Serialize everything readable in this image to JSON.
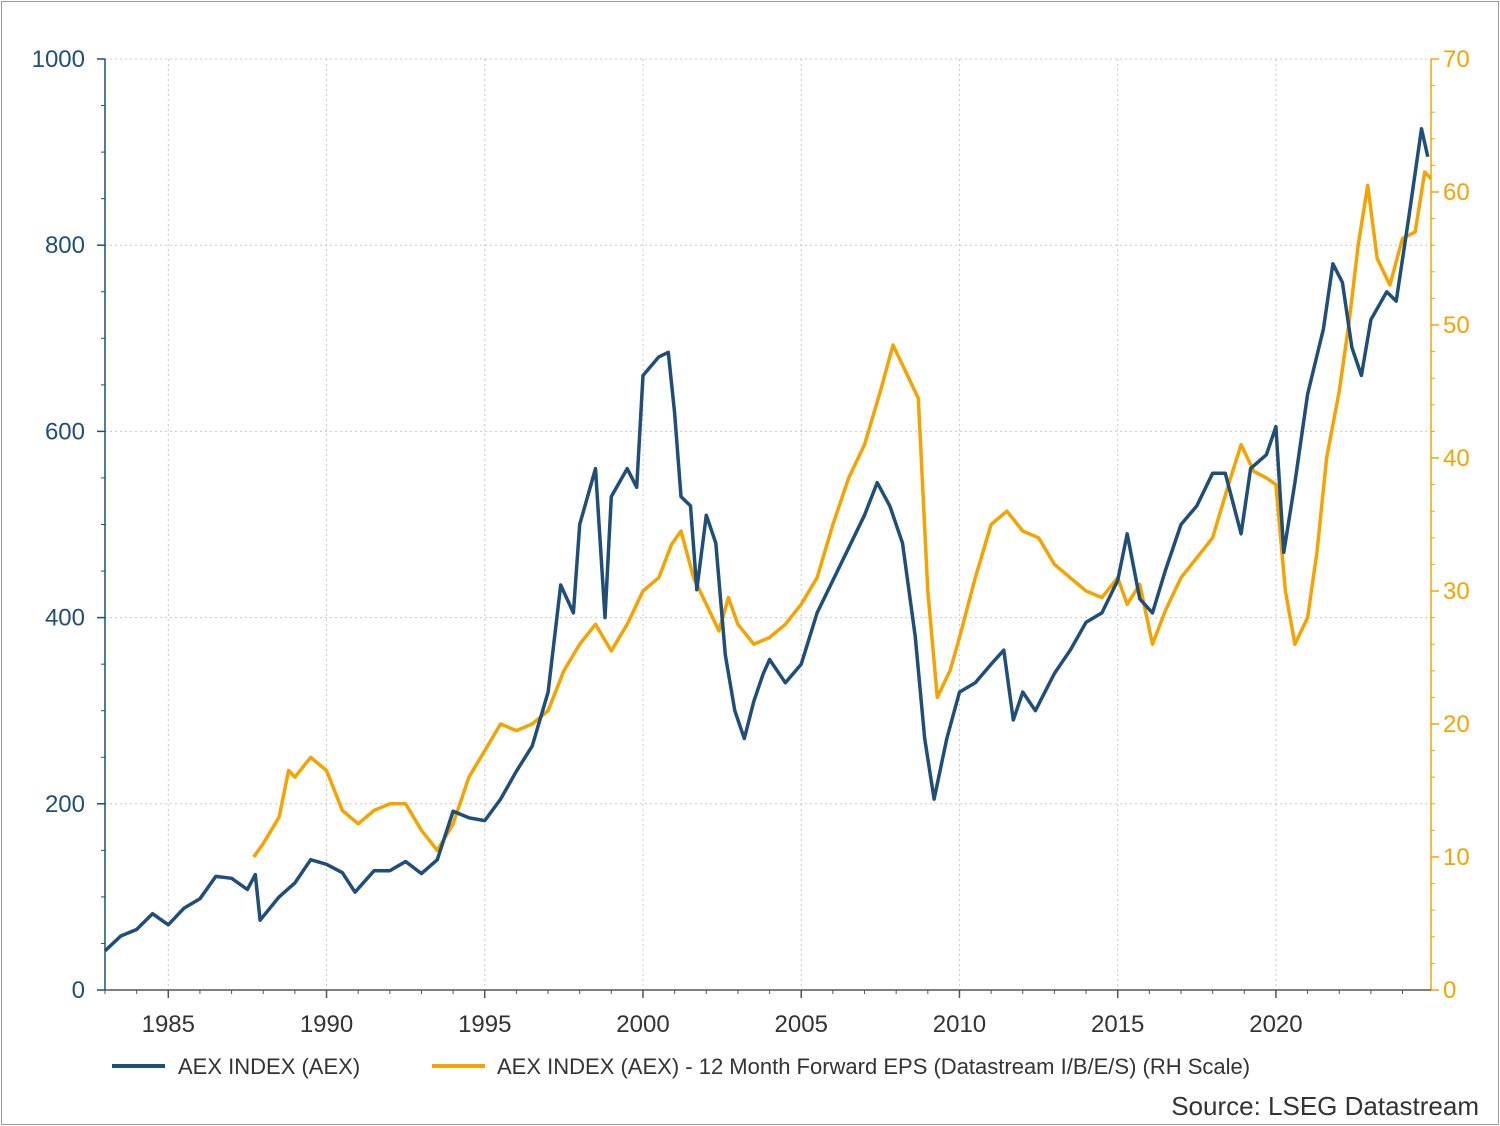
{
  "chart_data": {
    "type": "line",
    "title": "",
    "source": "Source: LSEG Datastream",
    "x_ticks": [
      "1985",
      "1990",
      "1995",
      "2000",
      "2005",
      "2010",
      "2015",
      "2020"
    ],
    "xlim": [
      1983.0,
      2024.9
    ],
    "y_left": {
      "lim": [
        0,
        1000
      ],
      "ticks": [
        "0",
        "200",
        "400",
        "600",
        "800",
        "1000"
      ],
      "color": "#1f4e79"
    },
    "y_right": {
      "lim": [
        0,
        70
      ],
      "ticks": [
        "0",
        "10",
        "20",
        "30",
        "40",
        "50",
        "60",
        "70"
      ],
      "color": "#f5a300"
    },
    "grid": true,
    "legend_position": "bottom",
    "series": [
      {
        "name": "AEX INDEX (AEX)",
        "axis": "left",
        "color": "#1f4e79",
        "points": [
          [
            1983.0,
            42
          ],
          [
            1983.5,
            58
          ],
          [
            1984.0,
            65
          ],
          [
            1984.5,
            82
          ],
          [
            1985.0,
            70
          ],
          [
            1985.5,
            88
          ],
          [
            1986.0,
            98
          ],
          [
            1986.5,
            122
          ],
          [
            1987.0,
            120
          ],
          [
            1987.5,
            108
          ],
          [
            1987.75,
            124
          ],
          [
            1987.9,
            75
          ],
          [
            1988.5,
            100
          ],
          [
            1989.0,
            115
          ],
          [
            1989.5,
            140
          ],
          [
            1990.0,
            135
          ],
          [
            1990.5,
            126
          ],
          [
            1990.9,
            105
          ],
          [
            1991.5,
            128
          ],
          [
            1992.0,
            128
          ],
          [
            1992.5,
            138
          ],
          [
            1993.0,
            125
          ],
          [
            1993.5,
            140
          ],
          [
            1994.0,
            192
          ],
          [
            1994.5,
            185
          ],
          [
            1995.0,
            182
          ],
          [
            1995.5,
            205
          ],
          [
            1996.0,
            235
          ],
          [
            1996.5,
            262
          ],
          [
            1997.0,
            320
          ],
          [
            1997.4,
            435
          ],
          [
            1997.8,
            405
          ],
          [
            1998.0,
            500
          ],
          [
            1998.5,
            560
          ],
          [
            1998.8,
            400
          ],
          [
            1999.0,
            530
          ],
          [
            1999.5,
            560
          ],
          [
            1999.8,
            540
          ],
          [
            2000.0,
            660
          ],
          [
            2000.5,
            680
          ],
          [
            2000.8,
            685
          ],
          [
            2001.0,
            620
          ],
          [
            2001.2,
            530
          ],
          [
            2001.5,
            520
          ],
          [
            2001.7,
            430
          ],
          [
            2002.0,
            510
          ],
          [
            2002.3,
            480
          ],
          [
            2002.6,
            360
          ],
          [
            2002.9,
            300
          ],
          [
            2003.2,
            270
          ],
          [
            2003.5,
            310
          ],
          [
            2003.8,
            340
          ],
          [
            2004.0,
            355
          ],
          [
            2004.5,
            330
          ],
          [
            2005.0,
            350
          ],
          [
            2005.5,
            405
          ],
          [
            2006.0,
            440
          ],
          [
            2006.5,
            475
          ],
          [
            2007.0,
            510
          ],
          [
            2007.4,
            545
          ],
          [
            2007.8,
            520
          ],
          [
            2008.2,
            480
          ],
          [
            2008.6,
            380
          ],
          [
            2008.9,
            270
          ],
          [
            2009.2,
            205
          ],
          [
            2009.6,
            270
          ],
          [
            2010.0,
            320
          ],
          [
            2010.5,
            330
          ],
          [
            2011.0,
            350
          ],
          [
            2011.4,
            365
          ],
          [
            2011.7,
            290
          ],
          [
            2012.0,
            320
          ],
          [
            2012.4,
            300
          ],
          [
            2012.7,
            320
          ],
          [
            2013.0,
            340
          ],
          [
            2013.5,
            365
          ],
          [
            2014.0,
            395
          ],
          [
            2014.5,
            405
          ],
          [
            2015.0,
            440
          ],
          [
            2015.3,
            490
          ],
          [
            2015.7,
            420
          ],
          [
            2016.1,
            405
          ],
          [
            2016.5,
            450
          ],
          [
            2017.0,
            500
          ],
          [
            2017.5,
            520
          ],
          [
            2018.0,
            555
          ],
          [
            2018.4,
            555
          ],
          [
            2018.9,
            490
          ],
          [
            2019.2,
            560
          ],
          [
            2019.7,
            575
          ],
          [
            2020.0,
            605
          ],
          [
            2020.25,
            470
          ],
          [
            2020.6,
            545
          ],
          [
            2021.0,
            640
          ],
          [
            2021.5,
            710
          ],
          [
            2021.8,
            780
          ],
          [
            2022.1,
            760
          ],
          [
            2022.4,
            690
          ],
          [
            2022.7,
            660
          ],
          [
            2023.0,
            720
          ],
          [
            2023.5,
            750
          ],
          [
            2023.8,
            740
          ],
          [
            2024.2,
            830
          ],
          [
            2024.6,
            925
          ],
          [
            2024.8,
            895
          ]
        ]
      },
      {
        "name": "AEX INDEX (AEX) - 12 Month Forward EPS (Datastream I/B/E/S) (RH Scale)",
        "axis": "right",
        "color": "#f5a300",
        "points": [
          [
            1987.7,
            10
          ],
          [
            1988.0,
            11
          ],
          [
            1988.5,
            13
          ],
          [
            1988.8,
            16.5
          ],
          [
            1989.0,
            16
          ],
          [
            1989.5,
            17.5
          ],
          [
            1990.0,
            16.5
          ],
          [
            1990.5,
            13.5
          ],
          [
            1991.0,
            12.5
          ],
          [
            1991.5,
            13.5
          ],
          [
            1992.0,
            14
          ],
          [
            1992.5,
            14
          ],
          [
            1993.0,
            12
          ],
          [
            1993.5,
            10.5
          ],
          [
            1994.0,
            12.5
          ],
          [
            1994.5,
            16
          ],
          [
            1995.0,
            18
          ],
          [
            1995.5,
            20
          ],
          [
            1996.0,
            19.5
          ],
          [
            1996.5,
            20
          ],
          [
            1997.0,
            21
          ],
          [
            1997.5,
            24
          ],
          [
            1998.0,
            26
          ],
          [
            1998.5,
            27.5
          ],
          [
            1999.0,
            25.5
          ],
          [
            1999.5,
            27.5
          ],
          [
            2000.0,
            30
          ],
          [
            2000.5,
            31
          ],
          [
            2000.9,
            33.5
          ],
          [
            2001.2,
            34.5
          ],
          [
            2001.6,
            31
          ],
          [
            2002.0,
            29
          ],
          [
            2002.4,
            27
          ],
          [
            2002.7,
            29.5
          ],
          [
            2003.0,
            27.5
          ],
          [
            2003.5,
            26
          ],
          [
            2004.0,
            26.5
          ],
          [
            2004.5,
            27.5
          ],
          [
            2005.0,
            29
          ],
          [
            2005.5,
            31
          ],
          [
            2006.0,
            35
          ],
          [
            2006.5,
            38.5
          ],
          [
            2007.0,
            41
          ],
          [
            2007.5,
            45
          ],
          [
            2007.9,
            48.5
          ],
          [
            2008.3,
            46.5
          ],
          [
            2008.7,
            44.5
          ],
          [
            2009.0,
            30
          ],
          [
            2009.3,
            22
          ],
          [
            2009.7,
            24
          ],
          [
            2010.0,
            26.5
          ],
          [
            2010.5,
            31
          ],
          [
            2011.0,
            35
          ],
          [
            2011.5,
            36
          ],
          [
            2012.0,
            34.5
          ],
          [
            2012.5,
            34
          ],
          [
            2013.0,
            32
          ],
          [
            2013.5,
            31
          ],
          [
            2014.0,
            30
          ],
          [
            2014.5,
            29.5
          ],
          [
            2015.0,
            31
          ],
          [
            2015.3,
            29
          ],
          [
            2015.7,
            30.5
          ],
          [
            2016.1,
            26
          ],
          [
            2016.5,
            28.5
          ],
          [
            2017.0,
            31
          ],
          [
            2017.5,
            32.5
          ],
          [
            2018.0,
            34
          ],
          [
            2018.5,
            38
          ],
          [
            2018.9,
            41
          ],
          [
            2019.3,
            39
          ],
          [
            2019.7,
            38.5
          ],
          [
            2020.0,
            38
          ],
          [
            2020.3,
            30
          ],
          [
            2020.6,
            26
          ],
          [
            2021.0,
            28
          ],
          [
            2021.3,
            33
          ],
          [
            2021.6,
            40
          ],
          [
            2022.0,
            45
          ],
          [
            2022.3,
            50
          ],
          [
            2022.6,
            56
          ],
          [
            2022.9,
            60.5
          ],
          [
            2023.2,
            55
          ],
          [
            2023.6,
            53
          ],
          [
            2024.0,
            56.5
          ],
          [
            2024.4,
            57
          ],
          [
            2024.7,
            61.5
          ],
          [
            2024.9,
            61
          ]
        ]
      }
    ]
  }
}
